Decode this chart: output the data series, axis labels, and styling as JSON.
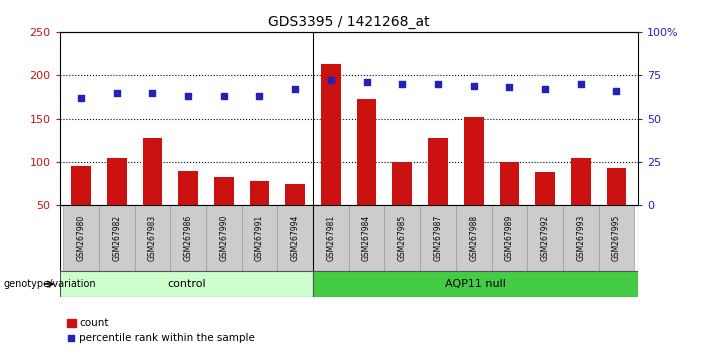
{
  "title": "GDS3395 / 1421268_at",
  "samples": [
    "GSM267980",
    "GSM267982",
    "GSM267983",
    "GSM267986",
    "GSM267990",
    "GSM267991",
    "GSM267994",
    "GSM267981",
    "GSM267984",
    "GSM267985",
    "GSM267987",
    "GSM267988",
    "GSM267989",
    "GSM267992",
    "GSM267993",
    "GSM267995"
  ],
  "counts": [
    95,
    105,
    128,
    90,
    83,
    78,
    75,
    213,
    173,
    100,
    128,
    152,
    100,
    88,
    105,
    93
  ],
  "percentiles": [
    62,
    65,
    65,
    63,
    63,
    63,
    67,
    72,
    71,
    70,
    70,
    69,
    68,
    67,
    70,
    66
  ],
  "control_count": 7,
  "control_label": "control",
  "aqp11_label": "AQP11 null",
  "left_ylim": [
    50,
    250
  ],
  "right_ylim": [
    0,
    100
  ],
  "left_yticks": [
    50,
    100,
    150,
    200,
    250
  ],
  "right_yticks": [
    0,
    25,
    50,
    75,
    100
  ],
  "bar_color": "#cc1111",
  "dot_color": "#2222bb",
  "control_bg": "#ccffcc",
  "aqp11_bg": "#44cc44",
  "sample_bg": "#cccccc",
  "grid_color": "#000000",
  "label_count": "count",
  "label_percentile": "percentile rank within the sample",
  "genotype_label": "genotype/variation"
}
